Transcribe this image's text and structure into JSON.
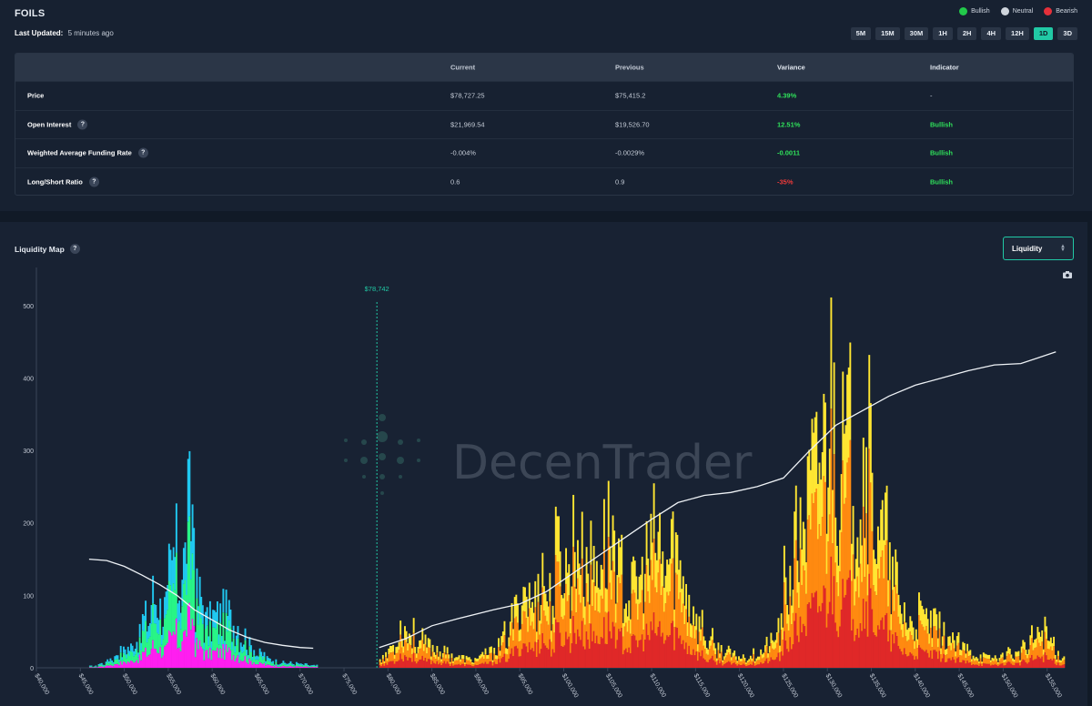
{
  "header": {
    "title": "FOILS",
    "legend": [
      {
        "label": "Bullish",
        "color": "#22c94a"
      },
      {
        "label": "Neutral",
        "color": "#cfd5dc"
      },
      {
        "label": "Bearish",
        "color": "#e5303a"
      }
    ],
    "last_updated_label": "Last Updated:",
    "last_updated_value": "5 minutes ago",
    "timeframes": [
      "5M",
      "15M",
      "30M",
      "1H",
      "2H",
      "4H",
      "12H",
      "1D",
      "3D"
    ],
    "active_timeframe": "1D"
  },
  "table": {
    "columns": [
      "",
      "Current",
      "Previous",
      "Variance",
      "Indicator"
    ],
    "rows": [
      {
        "metric": "Price",
        "help": false,
        "current": "$78,727.25",
        "previous": "$75,415.2",
        "variance": "4.39%",
        "variance_sign": "pos",
        "indicator": "-",
        "indicator_sign": "neu"
      },
      {
        "metric": "Open Interest",
        "help": true,
        "current": "$21,969.54",
        "previous": "$19,526.70",
        "variance": "12.51%",
        "variance_sign": "pos",
        "indicator": "Bullish",
        "indicator_sign": "pos"
      },
      {
        "metric": "Weighted Average Funding Rate",
        "help": true,
        "current": "-0.004%",
        "previous": "-0.0029%",
        "variance": "-0.0011",
        "variance_sign": "pos",
        "indicator": "Bullish",
        "indicator_sign": "pos"
      },
      {
        "metric": "Long/Short Ratio",
        "help": true,
        "current": "0.6",
        "previous": "0.9",
        "variance": "-35%",
        "variance_sign": "neg",
        "indicator": "Bullish",
        "indicator_sign": "pos"
      }
    ]
  },
  "map": {
    "title": "Liquidity Map",
    "help": "?",
    "select_value": "Liquidity",
    "watermark": "DecenTrader"
  },
  "chart_data": {
    "type": "bar",
    "title": "",
    "current_price": 78742,
    "current_price_label": "$78,742",
    "xlim": [
      40000,
      157000
    ],
    "ylim": [
      0,
      540
    ],
    "y_ticks": [
      0,
      100,
      200,
      300,
      400,
      500
    ],
    "x_ticks": [
      "$40,000",
      "$45,000",
      "$50,000",
      "$55,000",
      "$60,000",
      "$65,000",
      "$70,000",
      "$75,000",
      "$80,000",
      "$85,000",
      "$90,000",
      "$95,000",
      "$100,000",
      "$105,000",
      "$110,000",
      "$115,000",
      "$120,000",
      "$125,000",
      "$130,000",
      "$135,000",
      "$140,000",
      "$145,000",
      "$150,000",
      "$155,000"
    ],
    "x_tick_values": [
      40000,
      45000,
      50000,
      55000,
      60000,
      65000,
      70000,
      75000,
      80000,
      85000,
      90000,
      95000,
      100000,
      105000,
      110000,
      115000,
      120000,
      125000,
      130000,
      135000,
      140000,
      145000,
      150000,
      155000
    ],
    "long_liquidations": {
      "colors": [
        "#ff1ef0",
        "#28f587",
        "#20c8f0"
      ],
      "bins": [
        {
          "x": 46000,
          "y": 3
        },
        {
          "x": 47000,
          "y": 8
        },
        {
          "x": 48000,
          "y": 18
        },
        {
          "x": 49000,
          "y": 30
        },
        {
          "x": 50000,
          "y": 38
        },
        {
          "x": 51000,
          "y": 55
        },
        {
          "x": 52000,
          "y": 90
        },
        {
          "x": 53000,
          "y": 135
        },
        {
          "x": 54000,
          "y": 110
        },
        {
          "x": 55000,
          "y": 170
        },
        {
          "x": 55500,
          "y": 210
        },
        {
          "x": 56000,
          "y": 160
        },
        {
          "x": 56500,
          "y": 200
        },
        {
          "x": 57000,
          "y": 280
        },
        {
          "x": 57500,
          "y": 300
        },
        {
          "x": 58000,
          "y": 130
        },
        {
          "x": 59000,
          "y": 85
        },
        {
          "x": 60000,
          "y": 95
        },
        {
          "x": 61000,
          "y": 100
        },
        {
          "x": 62000,
          "y": 85
        },
        {
          "x": 63000,
          "y": 60
        },
        {
          "x": 64000,
          "y": 40
        },
        {
          "x": 65000,
          "y": 25
        },
        {
          "x": 66000,
          "y": 16
        },
        {
          "x": 67000,
          "y": 12
        },
        {
          "x": 68000,
          "y": 9
        },
        {
          "x": 69000,
          "y": 8
        },
        {
          "x": 70000,
          "y": 6
        },
        {
          "x": 71000,
          "y": 4
        }
      ],
      "cumulative": [
        {
          "x": 46000,
          "y": 150
        },
        {
          "x": 48000,
          "y": 148
        },
        {
          "x": 50000,
          "y": 140
        },
        {
          "x": 52000,
          "y": 128
        },
        {
          "x": 54000,
          "y": 115
        },
        {
          "x": 56000,
          "y": 100
        },
        {
          "x": 58000,
          "y": 80
        },
        {
          "x": 60000,
          "y": 66
        },
        {
          "x": 62000,
          "y": 52
        },
        {
          "x": 64000,
          "y": 42
        },
        {
          "x": 66000,
          "y": 35
        },
        {
          "x": 68000,
          "y": 31
        },
        {
          "x": 70000,
          "y": 28
        },
        {
          "x": 71500,
          "y": 27
        }
      ]
    },
    "short_liquidations": {
      "colors": [
        "#e02828",
        "#ff8a10",
        "#ffe632"
      ],
      "bins": [
        {
          "x": 79000,
          "y": 20
        },
        {
          "x": 80000,
          "y": 40
        },
        {
          "x": 81000,
          "y": 75
        },
        {
          "x": 82000,
          "y": 65
        },
        {
          "x": 83000,
          "y": 50
        },
        {
          "x": 84000,
          "y": 42
        },
        {
          "x": 85000,
          "y": 35
        },
        {
          "x": 86000,
          "y": 28
        },
        {
          "x": 87000,
          "y": 22
        },
        {
          "x": 88000,
          "y": 18
        },
        {
          "x": 89000,
          "y": 15
        },
        {
          "x": 90000,
          "y": 20
        },
        {
          "x": 91000,
          "y": 28
        },
        {
          "x": 92000,
          "y": 40
        },
        {
          "x": 93000,
          "y": 60
        },
        {
          "x": 94000,
          "y": 100
        },
        {
          "x": 95000,
          "y": 150
        },
        {
          "x": 96000,
          "y": 120
        },
        {
          "x": 97000,
          "y": 170
        },
        {
          "x": 98000,
          "y": 130
        },
        {
          "x": 99000,
          "y": 210
        },
        {
          "x": 100000,
          "y": 180
        },
        {
          "x": 101000,
          "y": 240
        },
        {
          "x": 102000,
          "y": 200
        },
        {
          "x": 103000,
          "y": 190
        },
        {
          "x": 104000,
          "y": 230
        },
        {
          "x": 105000,
          "y": 250
        },
        {
          "x": 106000,
          "y": 170
        },
        {
          "x": 107000,
          "y": 140
        },
        {
          "x": 108000,
          "y": 160
        },
        {
          "x": 109000,
          "y": 200
        },
        {
          "x": 110000,
          "y": 235
        },
        {
          "x": 111000,
          "y": 190
        },
        {
          "x": 112000,
          "y": 220
        },
        {
          "x": 113000,
          "y": 175
        },
        {
          "x": 114000,
          "y": 120
        },
        {
          "x": 115000,
          "y": 80
        },
        {
          "x": 116000,
          "y": 50
        },
        {
          "x": 117000,
          "y": 35
        },
        {
          "x": 118000,
          "y": 28
        },
        {
          "x": 119000,
          "y": 22
        },
        {
          "x": 120000,
          "y": 20
        },
        {
          "x": 121000,
          "y": 25
        },
        {
          "x": 122000,
          "y": 30
        },
        {
          "x": 123000,
          "y": 45
        },
        {
          "x": 124000,
          "y": 70
        },
        {
          "x": 125000,
          "y": 160
        },
        {
          "x": 126000,
          "y": 230
        },
        {
          "x": 127000,
          "y": 300
        },
        {
          "x": 128000,
          "y": 350
        },
        {
          "x": 129000,
          "y": 420
        },
        {
          "x": 130000,
          "y": 520
        },
        {
          "x": 131000,
          "y": 380
        },
        {
          "x": 132000,
          "y": 410
        },
        {
          "x": 133000,
          "y": 350
        },
        {
          "x": 134000,
          "y": 400
        },
        {
          "x": 135000,
          "y": 300
        },
        {
          "x": 136000,
          "y": 240
        },
        {
          "x": 137000,
          "y": 160
        },
        {
          "x": 138000,
          "y": 110
        },
        {
          "x": 139000,
          "y": 80
        },
        {
          "x": 140000,
          "y": 95
        },
        {
          "x": 141000,
          "y": 85
        },
        {
          "x": 142000,
          "y": 75
        },
        {
          "x": 143000,
          "y": 60
        },
        {
          "x": 144000,
          "y": 45
        },
        {
          "x": 145000,
          "y": 35
        },
        {
          "x": 146000,
          "y": 28
        },
        {
          "x": 147000,
          "y": 22
        },
        {
          "x": 148000,
          "y": 18
        },
        {
          "x": 149000,
          "y": 20
        },
        {
          "x": 150000,
          "y": 30
        },
        {
          "x": 151000,
          "y": 25
        },
        {
          "x": 152000,
          "y": 35
        },
        {
          "x": 153000,
          "y": 55
        },
        {
          "x": 154000,
          "y": 70
        },
        {
          "x": 155000,
          "y": 50
        },
        {
          "x": 156000,
          "y": 25
        }
      ],
      "cumulative": [
        {
          "x": 79000,
          "y": 28
        },
        {
          "x": 82000,
          "y": 40
        },
        {
          "x": 85000,
          "y": 58
        },
        {
          "x": 88000,
          "y": 68
        },
        {
          "x": 92000,
          "y": 80
        },
        {
          "x": 95000,
          "y": 88
        },
        {
          "x": 98000,
          "y": 105
        },
        {
          "x": 101000,
          "y": 130
        },
        {
          "x": 104000,
          "y": 155
        },
        {
          "x": 107000,
          "y": 180
        },
        {
          "x": 110000,
          "y": 205
        },
        {
          "x": 113000,
          "y": 228
        },
        {
          "x": 116000,
          "y": 238
        },
        {
          "x": 119000,
          "y": 242
        },
        {
          "x": 122000,
          "y": 250
        },
        {
          "x": 125000,
          "y": 262
        },
        {
          "x": 128000,
          "y": 300
        },
        {
          "x": 131000,
          "y": 335
        },
        {
          "x": 134000,
          "y": 355
        },
        {
          "x": 137000,
          "y": 375
        },
        {
          "x": 140000,
          "y": 390
        },
        {
          "x": 143000,
          "y": 400
        },
        {
          "x": 146000,
          "y": 410
        },
        {
          "x": 149000,
          "y": 418
        },
        {
          "x": 152000,
          "y": 420
        },
        {
          "x": 154000,
          "y": 428
        },
        {
          "x": 156000,
          "y": 436
        }
      ]
    }
  }
}
